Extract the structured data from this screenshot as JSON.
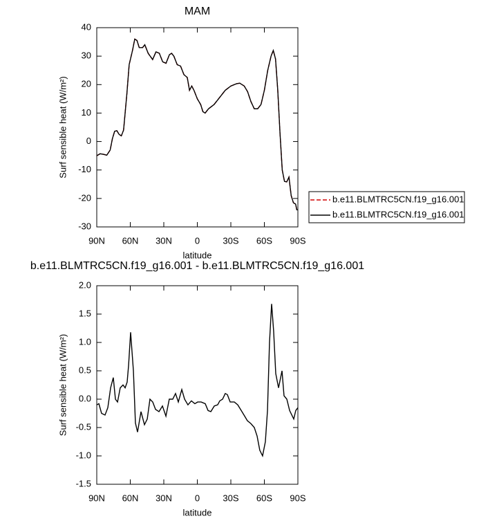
{
  "chart_data": [
    {
      "type": "line",
      "title": "MAM",
      "xlabel": "latitude",
      "ylabel": "Surf sensible heat (W/m²)",
      "x": [
        90,
        87,
        84,
        81,
        78,
        76,
        74,
        72,
        70,
        68,
        66,
        63,
        61,
        58,
        56,
        54,
        52,
        49,
        47,
        44,
        40,
        37,
        34,
        31,
        28,
        25,
        23,
        21,
        18,
        15,
        12,
        9,
        7,
        5,
        3,
        0,
        -3,
        -5,
        -7,
        -10,
        -15,
        -20,
        -25,
        -30,
        -35,
        -38,
        -42,
        -45,
        -48,
        -51,
        -54,
        -57,
        -60,
        -63,
        -66,
        -68,
        -70,
        -72,
        -74,
        -76,
        -78,
        -80,
        -82,
        -84,
        -86,
        -88,
        -89,
        -90
      ],
      "series": [
        {
          "name": "b.e11.BLMTRC5CN.f19_g16.001",
          "color": "#d00000",
          "style": "dashed",
          "values": [
            -5,
            -4.3,
            -4.5,
            -4.8,
            -3,
            1,
            3.6,
            3.8,
            2.5,
            2,
            4,
            17,
            27,
            32,
            36,
            35.5,
            33,
            33,
            34,
            31,
            28.8,
            31.5,
            31,
            28,
            27.5,
            30.5,
            31,
            30,
            27,
            26.5,
            23.5,
            22.5,
            18,
            19.5,
            18,
            15,
            13,
            10.5,
            10,
            11.5,
            13,
            15.5,
            18,
            19.5,
            20.3,
            20.5,
            19.5,
            17.5,
            14,
            11.5,
            11.5,
            13,
            18,
            25,
            30,
            32,
            29,
            18,
            3,
            -10,
            -14,
            -14.2,
            -12.5,
            -19,
            -21.5,
            -22,
            -24,
            -24
          ]
        },
        {
          "name": "b.e11.BLMTRC5CN.f19_g16.001",
          "color": "#000000",
          "style": "solid",
          "values": [
            -5,
            -4.3,
            -4.5,
            -4.8,
            -3,
            1,
            3.6,
            3.8,
            2.5,
            2,
            4,
            17,
            27,
            32,
            36,
            35.5,
            33,
            33,
            34,
            31,
            28.8,
            31.5,
            31,
            28,
            27.5,
            30.5,
            31,
            30,
            27,
            26.5,
            23.5,
            22.5,
            18,
            19.5,
            18,
            15,
            13,
            10.5,
            10,
            11.5,
            13,
            15.5,
            18,
            19.5,
            20.3,
            20.5,
            19.5,
            17.5,
            14,
            11.5,
            11.5,
            13,
            18,
            25,
            30,
            32,
            29,
            18,
            3,
            -10,
            -14,
            -14.2,
            -12.5,
            -19,
            -21.5,
            -22,
            -24,
            -24
          ]
        }
      ],
      "xlim": [
        90,
        -90
      ],
      "xticks": [
        {
          "value": 90,
          "label": "90N"
        },
        {
          "value": 60,
          "label": "60N"
        },
        {
          "value": 30,
          "label": "30N"
        },
        0,
        {
          "value": -30,
          "label": "30S"
        },
        {
          "value": -60,
          "label": "60S"
        },
        {
          "value": -90,
          "label": "90S"
        }
      ],
      "ylim": [
        -30,
        40
      ],
      "yticks": [
        40,
        30,
        20,
        10,
        0,
        -10,
        -20,
        -30
      ],
      "legend": "outside-right"
    },
    {
      "type": "line",
      "title": "b.e11.BLMTRC5CN.f19_g16.001 - b.e11.BLMTRC5CN.f19_g16.001",
      "xlabel": "latitude",
      "ylabel": "Surf sensible heat (W/m²)",
      "x": [
        90,
        88.1,
        85.7,
        82.6,
        80.1,
        77.6,
        75.2,
        73.3,
        71.4,
        69,
        66.5,
        64.6,
        62.8,
        61.5,
        59.7,
        57.2,
        55.4,
        53.5,
        50.4,
        47.3,
        44.8,
        42.4,
        39.9,
        37.4,
        34.3,
        31.2,
        28.1,
        25.1,
        22,
        19.5,
        17,
        13.9,
        11.4,
        8.4,
        5.3,
        2.2,
        -0.3,
        -3.4,
        -7.1,
        -9.6,
        -12.1,
        -15.2,
        -18.2,
        -20.1,
        -22.6,
        -25,
        -26.9,
        -29.4,
        -33.1,
        -36.2,
        -39.3,
        -42.4,
        -44.8,
        -47.9,
        -51,
        -53.5,
        -55.9,
        -58.4,
        -60.9,
        -62.8,
        -64.6,
        -66.5,
        -68.3,
        -70.2,
        -72.7,
        -75.8,
        -77.6,
        -80.1,
        -82.6,
        -86.3,
        -88.1,
        -90
      ],
      "series": [
        {
          "name": "b.e11.BLMTRC5CN.f19_g16.001 - b.e11.BLMTRC5CN.f19_g16.001",
          "color": "#000000",
          "style": "solid",
          "values": [
            -0.1,
            -0.08,
            -0.25,
            -0.28,
            -0.15,
            0.2,
            0.38,
            0,
            -0.05,
            0.2,
            0.25,
            0.2,
            0.3,
            0.6,
            1.18,
            0.5,
            -0.42,
            -0.58,
            -0.22,
            -0.45,
            -0.35,
            0,
            -0.05,
            -0.18,
            -0.22,
            -0.12,
            -0.3,
            0,
            0,
            0.1,
            -0.05,
            0.17,
            0,
            -0.1,
            -0.03,
            -0.08,
            -0.05,
            -0.05,
            -0.08,
            -0.2,
            -0.22,
            -0.12,
            -0.1,
            -0.03,
            0,
            0.1,
            0.08,
            -0.05,
            -0.05,
            -0.1,
            -0.2,
            -0.3,
            -0.38,
            -0.43,
            -0.5,
            -0.65,
            -0.9,
            -1,
            -0.75,
            -0.2,
            1,
            1.68,
            1.2,
            0.45,
            0.2,
            0.5,
            0.06,
            0,
            -0.2,
            -0.35,
            -0.2,
            -0.15
          ]
        }
      ],
      "xlim": [
        90,
        -90
      ],
      "xticks": [
        {
          "value": 90,
          "label": "90N"
        },
        {
          "value": 60,
          "label": "60N"
        },
        {
          "value": 30,
          "label": "30N"
        },
        0,
        {
          "value": -30,
          "label": "30S"
        },
        {
          "value": -60,
          "label": "60S"
        },
        {
          "value": -90,
          "label": "90S"
        }
      ],
      "ylim": [
        -1.5,
        2
      ],
      "yticks": [
        {
          "value": 2,
          "label": "2.0"
        },
        {
          "value": 1.5,
          "label": "1.5"
        },
        {
          "value": 1,
          "label": "1.0"
        },
        {
          "value": 0.5,
          "label": "0.5"
        },
        {
          "value": 0,
          "label": "0.0"
        },
        {
          "value": -0.5,
          "label": "-0.5"
        },
        {
          "value": -1,
          "label": "-1.0"
        },
        {
          "value": -1.5,
          "label": "-1.5"
        }
      ]
    }
  ]
}
